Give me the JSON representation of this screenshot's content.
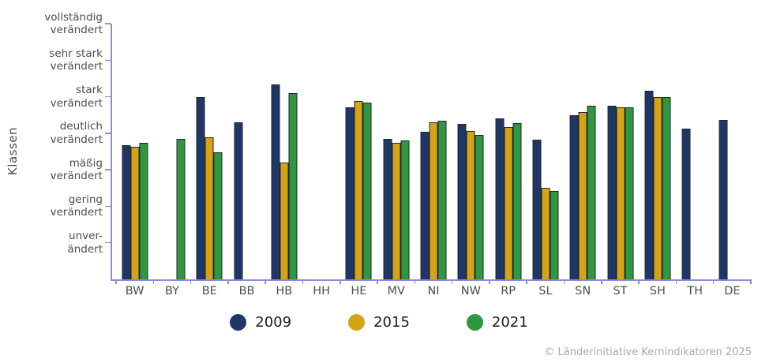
{
  "copyright": "© Länderinitiative Kernindikatoren 2025",
  "colors": {
    "axis": "#8c8cdb",
    "bar_outline": "#26262b",
    "tick_label_text": "#4d4d4d",
    "legend_text": "#1a1a1a",
    "copyright_text": "#a9a9a9",
    "series_2009": "#1f3767",
    "series_2015": "#d4a417",
    "series_2021": "#2e9740"
  },
  "chart_data": {
    "type": "bar",
    "title": "",
    "xlabel": "",
    "ylabel": "Klassen",
    "grid": false,
    "legend_position": "bottom",
    "ylim": [
      0,
      7
    ],
    "categories": [
      "BW",
      "BY",
      "BE",
      "BB",
      "HB",
      "HH",
      "HE",
      "MV",
      "NI",
      "NW",
      "RP",
      "SL",
      "SN",
      "ST",
      "SH",
      "TH",
      "DE"
    ],
    "y_ticks": [
      {
        "value": 7,
        "line1": "vollständig",
        "line2": "verändert"
      },
      {
        "value": 6,
        "line1": "sehr stark",
        "line2": "verändert"
      },
      {
        "value": 5,
        "line1": "stark",
        "line2": "verändert"
      },
      {
        "value": 4,
        "line1": "deutlich",
        "line2": "verändert"
      },
      {
        "value": 3,
        "line1": "mäßig",
        "line2": "verändert"
      },
      {
        "value": 2,
        "line1": "gering",
        "line2": "verändert"
      },
      {
        "value": 1,
        "line1": "unver-",
        "line2": "ändert"
      }
    ],
    "series": [
      {
        "name": "2009",
        "color": "#1f3767",
        "values": [
          3.68,
          null,
          5.0,
          4.3,
          5.33,
          null,
          4.72,
          3.85,
          4.05,
          4.25,
          4.4,
          3.83,
          4.5,
          4.75,
          5.16,
          4.13,
          4.37
        ]
      },
      {
        "name": "2015",
        "color": "#d4a417",
        "values": [
          3.64,
          null,
          3.88,
          null,
          3.2,
          null,
          4.88,
          3.73,
          4.29,
          4.07,
          4.18,
          2.5,
          4.58,
          4.72,
          5.0,
          null,
          null
        ]
      },
      {
        "name": "2021",
        "color": "#2e9740",
        "values": [
          3.73,
          3.84,
          3.47,
          null,
          5.09,
          null,
          4.85,
          3.8,
          4.34,
          3.95,
          4.27,
          2.42,
          4.76,
          4.72,
          5.0,
          null,
          null
        ]
      }
    ]
  }
}
